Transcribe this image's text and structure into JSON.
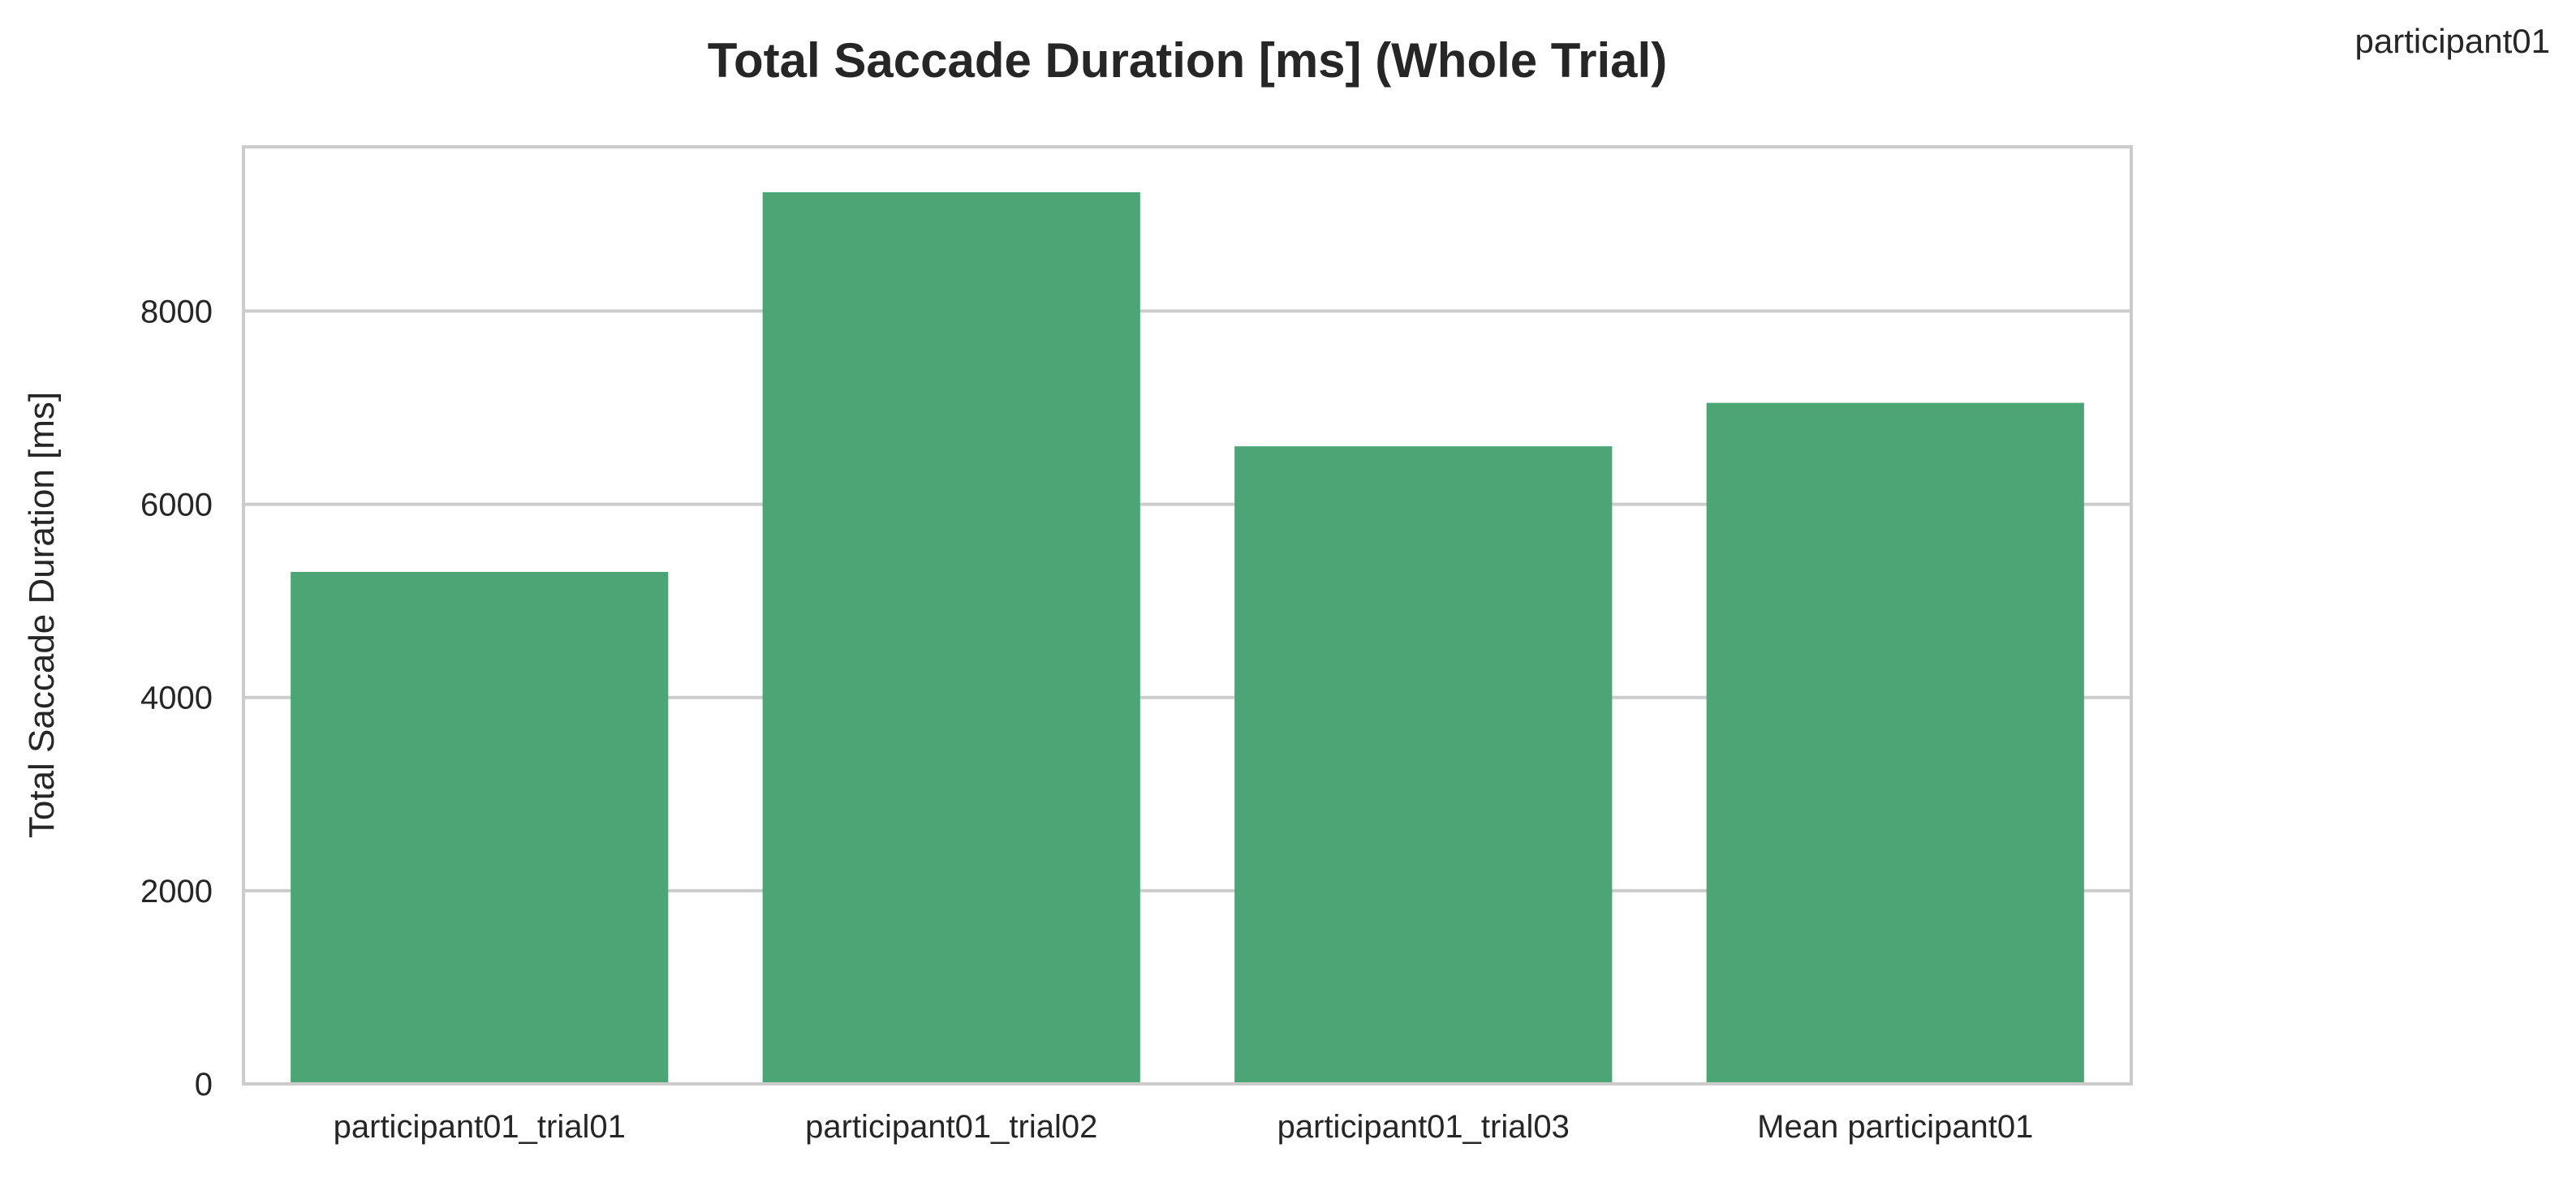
{
  "chart_data": {
    "type": "bar",
    "title": "Total Saccade Duration [ms] (Whole Trial)",
    "xlabel": "",
    "ylabel": "Total Saccade Duration [ms]",
    "legend_text": "participant01",
    "legend_position": "top-right",
    "categories": [
      "participant01_trial01",
      "participant01_trial02",
      "participant01_trial03",
      "Mean participant01"
    ],
    "series": [
      {
        "values": [
          5300,
          9230,
          6600,
          7050
        ],
        "color": "#4ca574"
      }
    ],
    "ylim": [
      0,
      9700
    ],
    "yticks": [
      0,
      2000,
      4000,
      6000,
      8000
    ],
    "grid": true,
    "grid_axis": "y"
  },
  "colors": {
    "bar": "#4ca574",
    "grid": "#cccccc",
    "frame": "#cccccc",
    "text": "#262626",
    "background": "#ffffff"
  }
}
